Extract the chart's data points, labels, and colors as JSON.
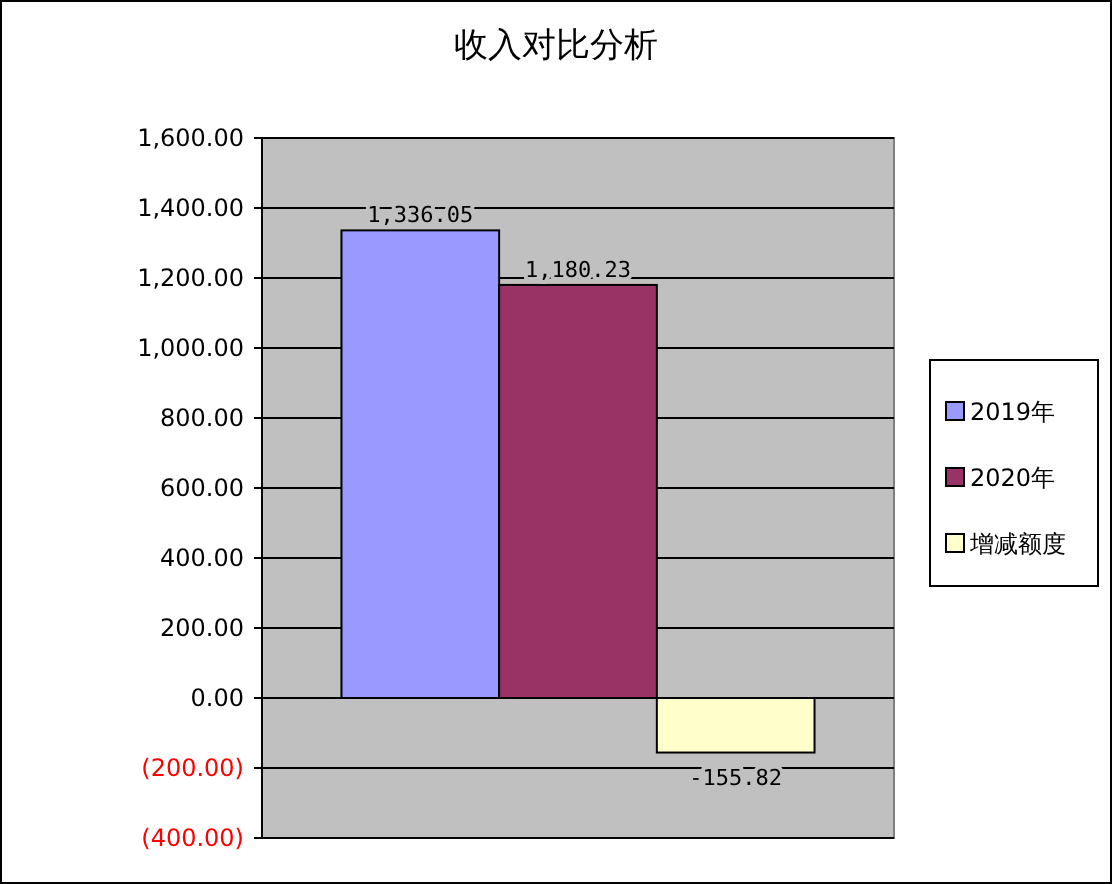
{
  "chart_data": {
    "type": "bar",
    "title": "收入对比分析",
    "categories": [
      null
    ],
    "series": [
      {
        "name": "2019年",
        "color": "#9999ff",
        "values": [
          1336.05
        ],
        "value_labels": [
          "1,336.05"
        ]
      },
      {
        "name": "2020年",
        "color": "#993366",
        "values": [
          1180.23
        ],
        "value_labels": [
          "1,180.23"
        ]
      },
      {
        "name": "增减额度",
        "color": "#ffffcc",
        "values": [
          -155.82
        ],
        "value_labels": [
          "-155.82"
        ]
      }
    ],
    "ylim": [
      -400,
      1600
    ],
    "yticks": [
      {
        "value": -400,
        "label": "(400.00)"
      },
      {
        "value": -200,
        "label": "(200.00)"
      },
      {
        "value": 0,
        "label": "0.00"
      },
      {
        "value": 200,
        "label": "200.00"
      },
      {
        "value": 400,
        "label": "400.00"
      },
      {
        "value": 600,
        "label": "600.00"
      },
      {
        "value": 800,
        "label": "800.00"
      },
      {
        "value": 1000,
        "label": "1,000.00"
      },
      {
        "value": 1200,
        "label": "1,200.00"
      },
      {
        "value": 1400,
        "label": "1,400.00"
      },
      {
        "value": 1600,
        "label": "1,600.00"
      }
    ],
    "grid": "y",
    "legend": "right"
  }
}
